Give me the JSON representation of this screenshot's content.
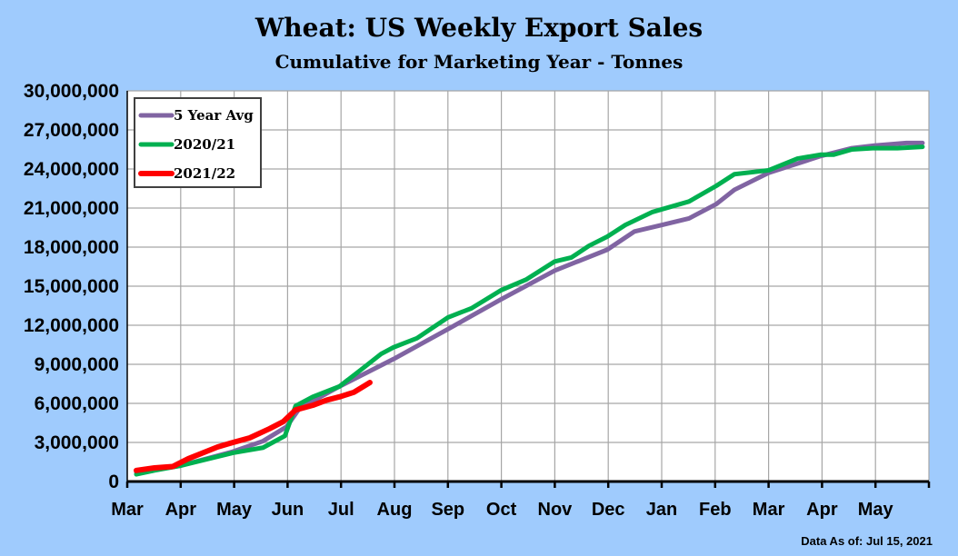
{
  "chart_data": {
    "type": "line",
    "title": "Wheat: US Weekly Export Sales",
    "subtitle": "Cumulative for Marketing Year - Tonnes",
    "xlabel": "",
    "ylabel": "",
    "x_units": "months since Mar 1",
    "xlim": [
      0,
      15
    ],
    "ylim": [
      0,
      30000000
    ],
    "grid": true,
    "legend_position": "top-left",
    "x_tick_labels": [
      "Mar",
      "Apr",
      "May",
      "Jun",
      "Jul",
      "Aug",
      "Sep",
      "Oct",
      "Nov",
      "Dec",
      "Jan",
      "Feb",
      "Mar",
      "Apr",
      "May"
    ],
    "y_tick_labels": [
      "0",
      "3,000,000",
      "6,000,000",
      "9,000,000",
      "12,000,000",
      "15,000,000",
      "18,000,000",
      "21,000,000",
      "24,000,000",
      "27,000,000",
      "30,000,000"
    ],
    "y_tick_values": [
      0,
      3000000,
      6000000,
      9000000,
      12000000,
      15000000,
      18000000,
      21000000,
      24000000,
      27000000,
      30000000
    ],
    "series": [
      {
        "name": "5 Year Avg",
        "color": "#8064a2",
        "points": [
          [
            0.17,
            700000
          ],
          [
            0.98,
            1200000
          ],
          [
            1.98,
            2300000
          ],
          [
            2.54,
            3100000
          ],
          [
            2.98,
            4200000
          ],
          [
            3.22,
            5600000
          ],
          [
            3.97,
            7300000
          ],
          [
            4.98,
            9400000
          ],
          [
            6.0,
            11700000
          ],
          [
            7.0,
            14000000
          ],
          [
            8.0,
            16200000
          ],
          [
            8.98,
            17800000
          ],
          [
            9.49,
            19200000
          ],
          [
            10.0,
            19700000
          ],
          [
            10.51,
            20200000
          ],
          [
            11.02,
            21300000
          ],
          [
            11.36,
            22400000
          ],
          [
            12.0,
            23700000
          ],
          [
            12.98,
            25000000
          ],
          [
            13.56,
            25600000
          ],
          [
            13.98,
            25800000
          ],
          [
            14.58,
            26000000
          ],
          [
            14.88,
            26000000
          ]
        ]
      },
      {
        "name": "2020/21",
        "color": "#00b050",
        "points": [
          [
            0.17,
            550000
          ],
          [
            0.51,
            850000
          ],
          [
            0.98,
            1200000
          ],
          [
            1.98,
            2200000
          ],
          [
            2.54,
            2600000
          ],
          [
            2.95,
            3500000
          ],
          [
            3.15,
            5800000
          ],
          [
            3.47,
            6500000
          ],
          [
            3.97,
            7300000
          ],
          [
            4.41,
            8700000
          ],
          [
            4.75,
            9800000
          ],
          [
            4.98,
            10300000
          ],
          [
            5.42,
            11000000
          ],
          [
            6.0,
            12600000
          ],
          [
            6.44,
            13300000
          ],
          [
            7.0,
            14700000
          ],
          [
            7.46,
            15500000
          ],
          [
            8.0,
            16900000
          ],
          [
            8.31,
            17200000
          ],
          [
            8.64,
            18100000
          ],
          [
            8.98,
            18800000
          ],
          [
            9.32,
            19700000
          ],
          [
            9.83,
            20700000
          ],
          [
            10.51,
            21500000
          ],
          [
            11.02,
            22700000
          ],
          [
            11.36,
            23600000
          ],
          [
            12.0,
            23900000
          ],
          [
            12.54,
            24800000
          ],
          [
            12.98,
            25100000
          ],
          [
            13.22,
            25100000
          ],
          [
            13.56,
            25500000
          ],
          [
            13.98,
            25600000
          ],
          [
            14.41,
            25600000
          ],
          [
            14.88,
            25700000
          ]
        ]
      },
      {
        "name": "2021/22",
        "color": "#ff0000",
        "points": [
          [
            0.17,
            850000
          ],
          [
            0.51,
            1050000
          ],
          [
            0.85,
            1150000
          ],
          [
            1.14,
            1750000
          ],
          [
            1.69,
            2650000
          ],
          [
            1.98,
            3000000
          ],
          [
            2.29,
            3350000
          ],
          [
            2.66,
            4050000
          ],
          [
            2.92,
            4600000
          ],
          [
            3.15,
            5500000
          ],
          [
            3.47,
            5850000
          ],
          [
            3.73,
            6250000
          ],
          [
            3.97,
            6500000
          ],
          [
            4.24,
            6850000
          ],
          [
            4.54,
            7600000
          ]
        ]
      }
    ]
  },
  "footer": "Data As of: Jul 15, 2021"
}
